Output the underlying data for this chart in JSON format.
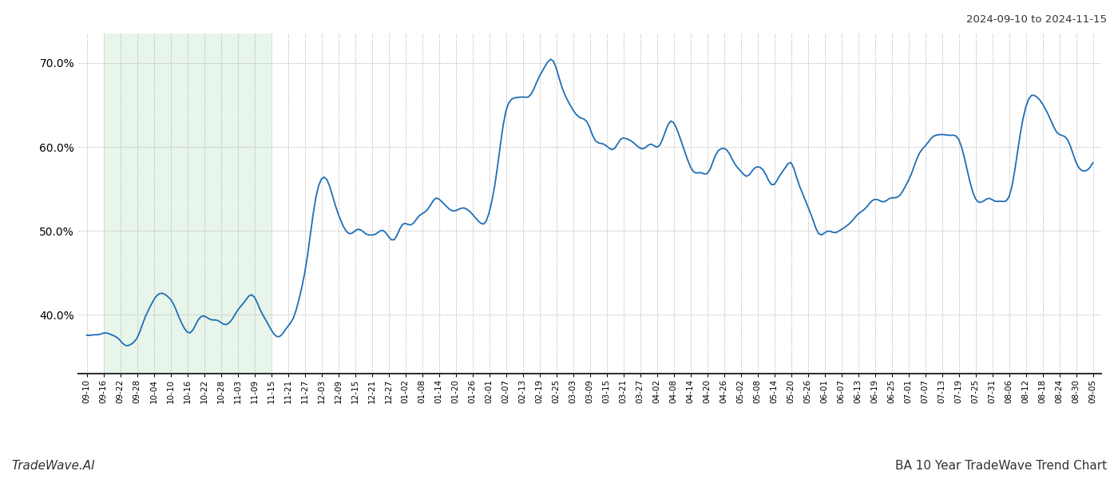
{
  "title_top_right": "2024-09-10 to 2024-11-15",
  "title_bottom_right": "BA 10 Year TradeWave Trend Chart",
  "title_bottom_left": "TradeWave.AI",
  "background_color": "#ffffff",
  "line_color": "#1f6eb5",
  "line_width": 1.3,
  "shade_color": "#d4edda",
  "shade_alpha": 0.55,
  "grid_color": "#bbbbbb",
  "grid_style": "--",
  "ylim": [
    0.33,
    0.735
  ],
  "yticks": [
    0.4,
    0.5,
    0.6,
    0.7
  ],
  "shade_start_label": "09-16",
  "shade_end_label": "11-15",
  "x_labels": [
    "09-10",
    "09-16",
    "09-22",
    "09-28",
    "10-04",
    "10-10",
    "10-16",
    "10-22",
    "10-28",
    "11-03",
    "11-09",
    "11-15",
    "11-21",
    "11-27",
    "12-03",
    "12-09",
    "12-15",
    "12-21",
    "12-27",
    "01-02",
    "01-08",
    "01-14",
    "01-20",
    "01-26",
    "02-01",
    "02-07",
    "02-13",
    "02-19",
    "02-25",
    "03-03",
    "03-09",
    "03-15",
    "03-21",
    "03-27",
    "04-02",
    "04-08",
    "04-14",
    "04-20",
    "04-26",
    "05-02",
    "05-08",
    "05-14",
    "05-20",
    "05-26",
    "06-01",
    "06-07",
    "06-13",
    "06-19",
    "06-25",
    "07-01",
    "07-07",
    "07-13",
    "07-19",
    "07-25",
    "07-31",
    "08-06",
    "08-12",
    "08-18",
    "08-24",
    "08-30",
    "09-05"
  ],
  "key_y_at_labels": [
    0.373,
    0.374,
    0.375,
    0.376,
    0.422,
    0.418,
    0.385,
    0.4,
    0.392,
    0.402,
    0.422,
    0.378,
    0.383,
    0.453,
    0.563,
    0.518,
    0.503,
    0.501,
    0.492,
    0.503,
    0.516,
    0.537,
    0.529,
    0.521,
    0.522,
    0.641,
    0.655,
    0.68,
    0.692,
    0.64,
    0.617,
    0.6,
    0.612,
    0.601,
    0.601,
    0.612,
    0.578,
    0.572,
    0.602,
    0.567,
    0.577,
    0.558,
    0.573,
    0.528,
    0.507,
    0.5,
    0.521,
    0.532,
    0.54,
    0.558,
    0.601,
    0.611,
    0.6,
    0.537,
    0.537,
    0.54,
    0.65,
    0.653,
    0.622,
    0.583,
    0.581
  ]
}
